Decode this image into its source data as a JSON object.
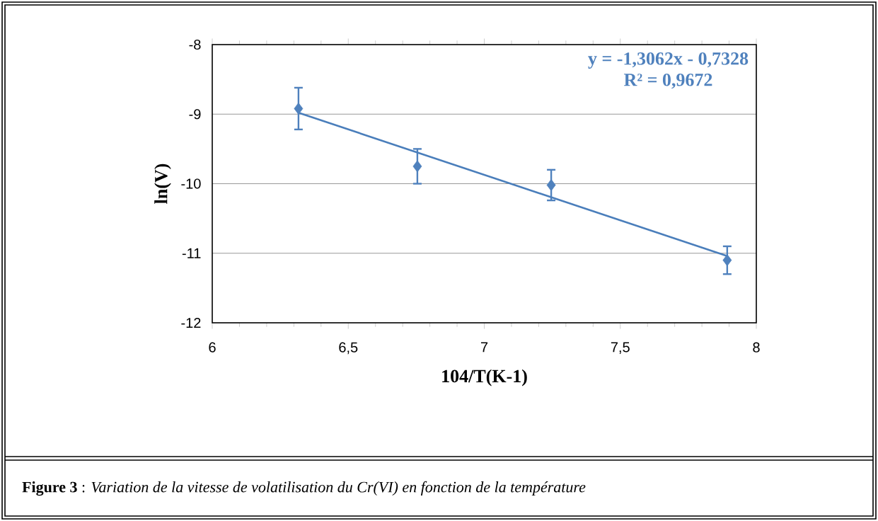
{
  "chart_data": {
    "type": "scatter",
    "title": "**Figure 3** : *Variation de la vitesse de volatilisation du Cr(VI) en fonction de la température*",
    "xlabel": "104/T(K-1)",
    "ylabel": "ln(V)",
    "annotations": [
      "y = -1,3062x - 0,7328",
      "R² = 0,9672"
    ],
    "series": [
      {
        "color": "#4f81bd",
        "marker": "diamond",
        "x": [
          6.317,
          6.754,
          7.246,
          7.893
        ],
        "values": [
          -8.92,
          -9.75,
          -10.02,
          -11.1
        ],
        "errors": [
          0.3,
          0.25,
          0.22,
          0.2
        ]
      },
      {
        "type": "line",
        "color": "#4a7ebb",
        "x": [
          6.317,
          7.893
        ],
        "values": [
          -8.98,
          -11.04
        ]
      }
    ],
    "xlim": [
      6,
      8
    ],
    "ylim": [
      -12,
      -8
    ],
    "xticks": [
      6,
      {
        "value": 6.5,
        "label": "6,5"
      },
      7,
      {
        "value": 7.5,
        "label": "7,5"
      },
      8
    ],
    "yticks": [
      -12,
      -11,
      -10,
      -9,
      -8
    ],
    "grid": "y"
  }
}
